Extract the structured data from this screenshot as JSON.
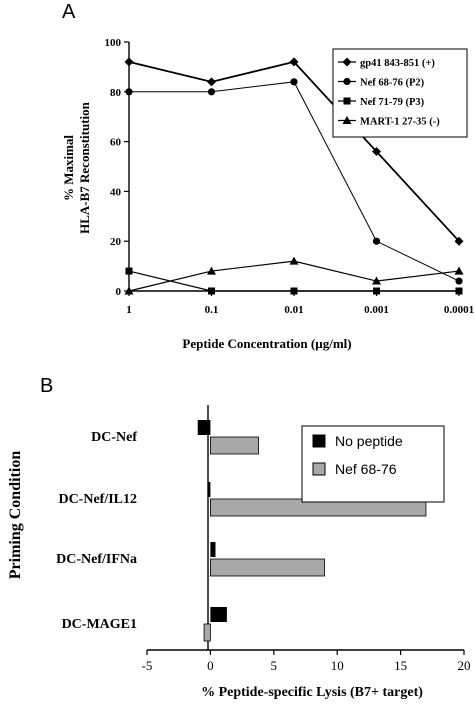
{
  "chart_data": [
    {
      "panel": "A",
      "type": "line",
      "xlabel": "Peptide Concentration (µg/ml)",
      "ylabel": "% Maximal HLA-B7 Reconstitution",
      "ylabel_lines": [
        "% Maximal",
        "HLA-B7 Reconstitution"
      ],
      "x_ticks": [
        "1",
        "0.1",
        "0.01",
        "0.001",
        "0.0001"
      ],
      "x_scale": "log (reversed)",
      "x": [
        1,
        0.1,
        0.01,
        0.001,
        0.0001
      ],
      "y_ticks": [
        0,
        20,
        40,
        60,
        80,
        100
      ],
      "ylim": [
        0,
        100
      ],
      "legend_position": "top-right",
      "series": [
        {
          "name": "gp41 843-851 (+)",
          "marker": "diamond",
          "values": [
            92,
            84,
            92,
            56,
            20
          ]
        },
        {
          "name": "Nef 68-76 (P2)",
          "marker": "circle",
          "values": [
            80,
            80,
            84,
            20,
            4
          ]
        },
        {
          "name": "Nef 71-79 (P3)",
          "marker": "square",
          "values": [
            8,
            0,
            0,
            0,
            0
          ]
        },
        {
          "name": "MART-1 27-35 (-)",
          "marker": "triangle",
          "values": [
            0,
            8,
            12,
            4,
            8
          ]
        }
      ]
    },
    {
      "panel": "B",
      "type": "bar",
      "orientation": "horizontal",
      "xlabel": "% Peptide-specific Lysis (B7+ target)",
      "ylabel": "Priming Condition",
      "categories": [
        "DC-Nef",
        "DC-Nef/IL12",
        "DC-Nef/IFNa",
        "DC-MAGE1"
      ],
      "x_ticks": [
        -5,
        0,
        5,
        10,
        15,
        20
      ],
      "xlim": [
        -5,
        20
      ],
      "legend_position": "top-right",
      "series": [
        {
          "name": "No peptide",
          "color": "#000000",
          "values": [
            -1.0,
            -0.2,
            0.4,
            1.3
          ]
        },
        {
          "name": "Nef 68-76",
          "color": "#a8a8a8",
          "values": [
            3.8,
            17.0,
            9.0,
            -0.5
          ]
        }
      ]
    }
  ],
  "panels": {
    "a_letter": "A",
    "b_letter": "B"
  }
}
